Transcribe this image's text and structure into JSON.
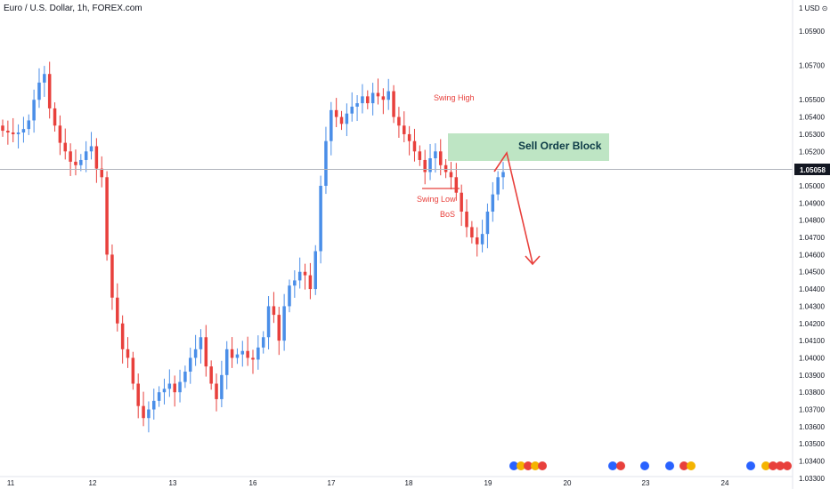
{
  "header": {
    "title": "Euro / U.S. Dollar, 1h, FOREX.com"
  },
  "price_axis": {
    "currency_label": "1 USD ⊙",
    "ticks": [
      "1.05900",
      "1.05700",
      "1.05500",
      "1.05400",
      "1.05300",
      "1.05200",
      "1.05100",
      "1.05000",
      "1.04900",
      "1.04800",
      "1.04700",
      "1.04600",
      "1.04500",
      "1.04400",
      "1.04300",
      "1.04200",
      "1.04100",
      "1.04000",
      "1.03900",
      "1.03800",
      "1.03700",
      "1.03600",
      "1.03500",
      "1.03400",
      "1.03300"
    ],
    "current_price": "1.05058"
  },
  "time_axis": {
    "ticks": [
      "11",
      "12",
      "13",
      "16",
      "17",
      "18",
      "19",
      "20",
      "23",
      "24"
    ]
  },
  "annotations": {
    "swing_high": "Swing High",
    "swing_low": "Swing Low",
    "bos": "BoS",
    "order_block": "Sell Order Block"
  },
  "colors": {
    "up": "#4a8ee8",
    "down": "#e8403c",
    "annotation": "#e8403c",
    "order_block_fill": "#a8dcb0",
    "order_block_text": "#0d3b47"
  },
  "chart_data": {
    "type": "candlestick",
    "symbol": "Euro / U.S. Dollar",
    "interval": "1h",
    "ylim": [
      1.0331,
      1.0608
    ],
    "current_price": 1.05058,
    "close_series": [
      1.0532,
      1.0531,
      1.053,
      1.0531,
      1.0533,
      1.0538,
      1.055,
      1.056,
      1.0565,
      1.0545,
      1.0535,
      1.0525,
      1.052,
      1.0514,
      1.0512,
      1.0515,
      1.052,
      1.0523,
      1.051,
      1.0505,
      1.046,
      1.0435,
      1.042,
      1.0405,
      1.04,
      1.0385,
      1.0372,
      1.0365,
      1.037,
      1.0375,
      1.038,
      1.0382,
      1.0385,
      1.038,
      1.0386,
      1.0392,
      1.04,
      1.0405,
      1.0412,
      1.0395,
      1.0385,
      1.0376,
      1.039,
      1.0405,
      1.04,
      1.0402,
      1.0404,
      1.04,
      1.0399,
      1.0406,
      1.0412,
      1.043,
      1.0425,
      1.041,
      1.043,
      1.0442,
      1.0445,
      1.045,
      1.0448,
      1.044,
      1.0462,
      1.05,
      1.0526,
      1.0544,
      1.054,
      1.0536,
      1.0542,
      1.0546,
      1.0548,
      1.0552,
      1.0548,
      1.0554,
      1.0552,
      1.055,
      1.0555,
      1.054,
      1.0535,
      1.053,
      1.0526,
      1.052,
      1.0515,
      1.0508,
      1.0516,
      1.052,
      1.0512,
      1.0508,
      1.0505,
      1.0496,
      1.0485,
      1.0476,
      1.047,
      1.0466,
      1.0472,
      1.0485,
      1.0495,
      1.0505,
      1.0508
    ],
    "up_color": "#4a8ee8",
    "down_color": "#e8403c"
  }
}
